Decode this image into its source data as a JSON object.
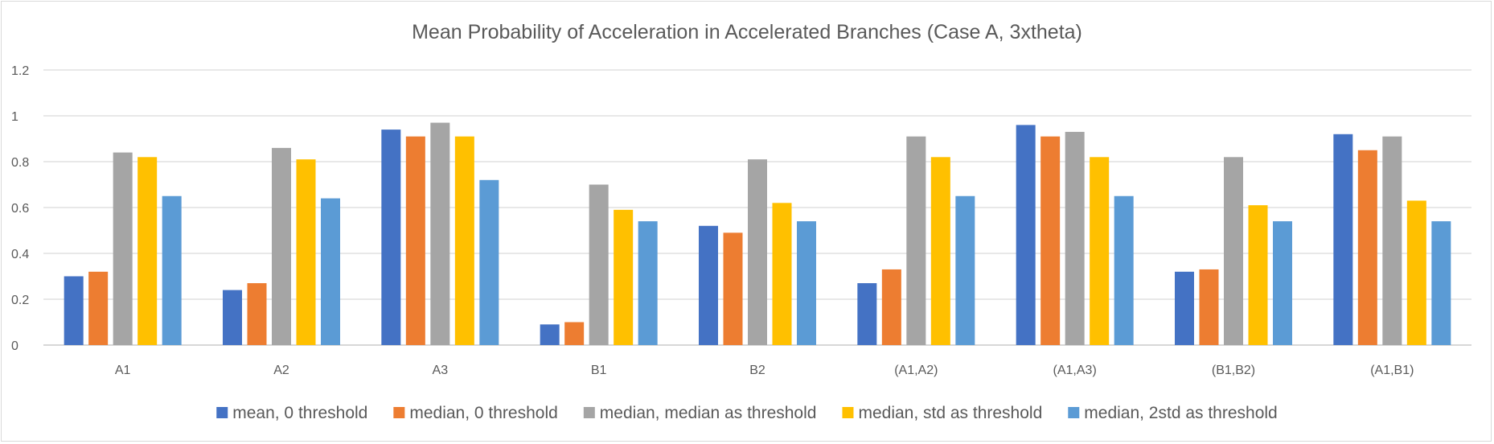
{
  "chart_data": {
    "type": "bar",
    "title": "Mean Probability of Acceleration in Accelerated Branches (Case A, 3xtheta)",
    "xlabel": "",
    "ylabel": "",
    "ylim": [
      0,
      1.2
    ],
    "yticks": [
      "0",
      "0.2",
      "0.4",
      "0.6",
      "0.8",
      "1",
      "1.2"
    ],
    "grid": true,
    "legend_position": "bottom",
    "categories": [
      "A1",
      "A2",
      "A3",
      "B1",
      "B2",
      "(A1,A2)",
      "(A1,A3)",
      "(B1,B2)",
      "(A1,B1)"
    ],
    "series": [
      {
        "name": "mean, 0 threshold",
        "color": "#4472c4",
        "values": [
          0.3,
          0.24,
          0.94,
          0.09,
          0.52,
          0.27,
          0.96,
          0.32,
          0.92
        ]
      },
      {
        "name": "median, 0 threshold",
        "color": "#ed7d31",
        "values": [
          0.32,
          0.27,
          0.91,
          0.1,
          0.49,
          0.33,
          0.91,
          0.33,
          0.85
        ]
      },
      {
        "name": "median, median as threshold",
        "color": "#a5a5a5",
        "values": [
          0.84,
          0.86,
          0.97,
          0.7,
          0.81,
          0.91,
          0.93,
          0.82,
          0.91
        ]
      },
      {
        "name": "median, std as threshold",
        "color": "#ffc000",
        "values": [
          0.82,
          0.81,
          0.91,
          0.59,
          0.62,
          0.82,
          0.82,
          0.61,
          0.63
        ]
      },
      {
        "name": "median, 2std as threshold",
        "color": "#5b9bd5",
        "values": [
          0.65,
          0.64,
          0.72,
          0.54,
          0.54,
          0.65,
          0.65,
          0.54,
          0.54
        ]
      }
    ]
  }
}
